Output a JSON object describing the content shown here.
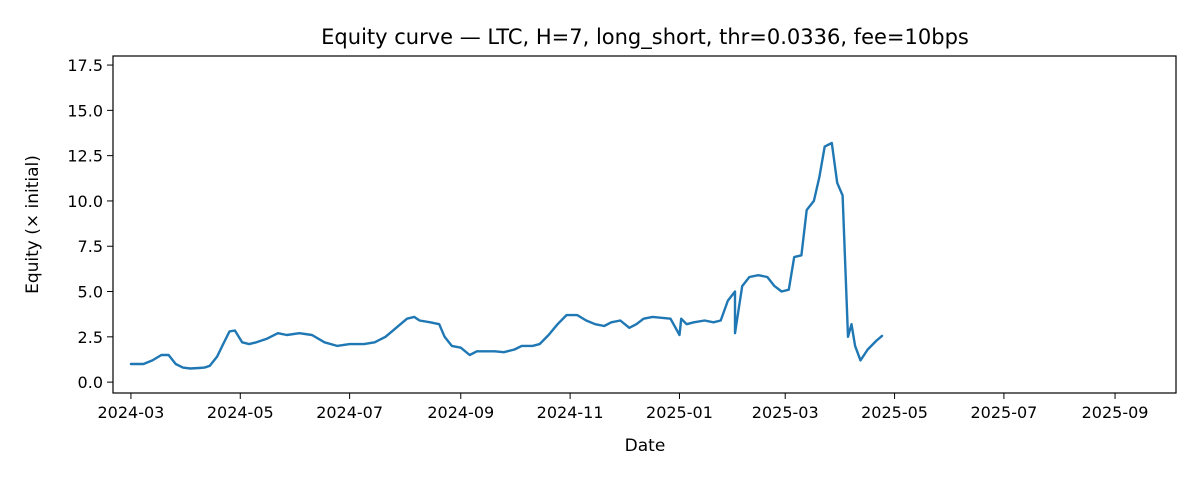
{
  "chart_data": {
    "type": "line",
    "title": "Equity curve — LTC, H=7, long_short, thr=0.0336, fee=10bps",
    "xlabel": "Date",
    "ylabel": "Equity (× initial)",
    "x_axis": {
      "type": "date",
      "range": [
        "2024-02-20",
        "2025-10-05"
      ],
      "ticks": [
        "2024-03-01",
        "2024-05-01",
        "2024-07-01",
        "2024-09-01",
        "2024-11-01",
        "2025-01-01",
        "2025-03-01",
        "2025-05-01",
        "2025-07-01",
        "2025-09-01"
      ],
      "tick_labels": [
        "2024-03",
        "2024-05",
        "2024-07",
        "2024-09",
        "2024-11",
        "2025-01",
        "2025-03",
        "2025-05",
        "2025-07",
        "2025-09"
      ]
    },
    "y_axis": {
      "range": [
        -0.6,
        18.0
      ],
      "ticks": [
        0,
        2.5,
        5,
        7.5,
        10,
        12.5,
        15,
        17.5
      ],
      "tick_labels": [
        "0.0",
        "2.5",
        "5.0",
        "7.5",
        "10.0",
        "12.5",
        "15.0",
        "17.5"
      ]
    },
    "grid": false,
    "series": [
      {
        "color": "#1f77b4",
        "points": [
          [
            "2024-03-01",
            1.0
          ],
          [
            "2024-03-08",
            1.0
          ],
          [
            "2024-03-13",
            1.2
          ],
          [
            "2024-03-18",
            1.5
          ],
          [
            "2024-03-22",
            1.5
          ],
          [
            "2024-03-26",
            1.0
          ],
          [
            "2024-03-30",
            0.8
          ],
          [
            "2024-04-03",
            0.75
          ],
          [
            "2024-04-08",
            0.78
          ],
          [
            "2024-04-11",
            0.8
          ],
          [
            "2024-04-14",
            0.9
          ],
          [
            "2024-04-18",
            1.4
          ],
          [
            "2024-04-21",
            2.0
          ],
          [
            "2024-04-25",
            2.8
          ],
          [
            "2024-04-28",
            2.85
          ],
          [
            "2024-05-02",
            2.2
          ],
          [
            "2024-05-06",
            2.1
          ],
          [
            "2024-05-10",
            2.2
          ],
          [
            "2024-05-16",
            2.4
          ],
          [
            "2024-05-22",
            2.7
          ],
          [
            "2024-05-27",
            2.6
          ],
          [
            "2024-06-03",
            2.7
          ],
          [
            "2024-06-10",
            2.6
          ],
          [
            "2024-06-17",
            2.2
          ],
          [
            "2024-06-24",
            2.0
          ],
          [
            "2024-07-01",
            2.1
          ],
          [
            "2024-07-09",
            2.1
          ],
          [
            "2024-07-15",
            2.2
          ],
          [
            "2024-07-21",
            2.5
          ],
          [
            "2024-07-27",
            3.0
          ],
          [
            "2024-08-02",
            3.5
          ],
          [
            "2024-08-06",
            3.6
          ],
          [
            "2024-08-09",
            3.4
          ],
          [
            "2024-08-15",
            3.3
          ],
          [
            "2024-08-20",
            3.2
          ],
          [
            "2024-08-23",
            2.5
          ],
          [
            "2024-08-27",
            2.0
          ],
          [
            "2024-09-01",
            1.9
          ],
          [
            "2024-09-06",
            1.5
          ],
          [
            "2024-09-10",
            1.7
          ],
          [
            "2024-09-20",
            1.7
          ],
          [
            "2024-09-25",
            1.65
          ],
          [
            "2024-10-01",
            1.8
          ],
          [
            "2024-10-05",
            2.0
          ],
          [
            "2024-10-11",
            2.0
          ],
          [
            "2024-10-15",
            2.1
          ],
          [
            "2024-10-20",
            2.6
          ],
          [
            "2024-10-25",
            3.2
          ],
          [
            "2024-10-30",
            3.7
          ],
          [
            "2024-11-05",
            3.7
          ],
          [
            "2024-11-10",
            3.4
          ],
          [
            "2024-11-15",
            3.2
          ],
          [
            "2024-11-20",
            3.1
          ],
          [
            "2024-11-24",
            3.3
          ],
          [
            "2024-11-29",
            3.4
          ],
          [
            "2024-12-04",
            3.0
          ],
          [
            "2024-12-08",
            3.2
          ],
          [
            "2024-12-12",
            3.5
          ],
          [
            "2024-12-17",
            3.6
          ],
          [
            "2024-12-22",
            3.55
          ],
          [
            "2024-12-27",
            3.5
          ],
          [
            "2025-01-02",
            3.5
          ],
          [
            "2025-01-05",
            3.2
          ],
          [
            "2025-01-09",
            3.3
          ],
          [
            "2025-01-15",
            3.4
          ],
          [
            "2025-01-20",
            3.3
          ],
          [
            "2025-01-24",
            3.4
          ],
          [
            "2025-01-28",
            4.5
          ],
          [
            "2025-02-01",
            5.0
          ],
          [
            "2025-02-05",
            5.3
          ],
          [
            "2025-02-09",
            5.8
          ],
          [
            "2025-02-14",
            5.9
          ],
          [
            "2025-02-19",
            5.8
          ],
          [
            "2025-02-23",
            5.3
          ],
          [
            "2025-02-27",
            5.0
          ],
          [
            "2025-03-03",
            5.1
          ],
          [
            "2025-03-06",
            6.9
          ],
          [
            "2025-03-10",
            7.0
          ],
          [
            "2025-03-13",
            9.5
          ],
          [
            "2025-03-17",
            10.0
          ],
          [
            "2025-03-20",
            11.3
          ],
          [
            "2025-03-23",
            13.0
          ],
          [
            "2025-03-27",
            13.2
          ],
          [
            "2025-03-30",
            11.0
          ],
          [
            "2025-04-02",
            10.3
          ],
          [
            "2025-04-05",
            2.5
          ],
          [
            "2025-04-07",
            3.2
          ],
          [
            "2025-04-09",
            2.0
          ],
          [
            "2025-04-12",
            1.2
          ],
          [
            "2025-04-16",
            1.8
          ],
          [
            "2025-04-21",
            2.3
          ],
          [
            "2025-04-24",
            2.55
          ],
          [
            "2025-01-01",
            2.6
          ],
          [
            "2025-02-01",
            2.7
          ]
        ]
      }
    ]
  }
}
